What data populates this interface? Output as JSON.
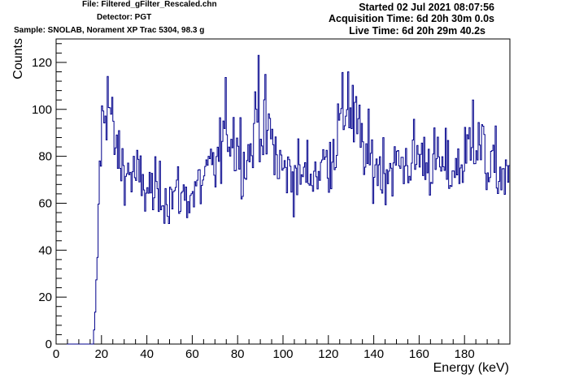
{
  "header": {
    "file": "File: Filtered_gFilter_Rescaled.chn",
    "detector": "Detector: PGT",
    "sample": "Sample: SNOLAB, Norament XP Trac 5304, 98.3 g",
    "started": "Started 02 Jul 2021 08:07:56",
    "acquisition_time": "Acquisition Time: 6d 20h 30m 0.0s",
    "live_time": "Live Time: 6d 20h 29m 40.2s"
  },
  "colors": {
    "series": "#00008b",
    "axis": "#000000"
  },
  "chart_data": {
    "type": "line",
    "style": "step-histogram",
    "title": "",
    "xlabel": "Energy (keV)",
    "ylabel": "Counts",
    "xlim": [
      0,
      200
    ],
    "ylim": [
      0,
      130
    ],
    "xticks": [
      0,
      20,
      40,
      60,
      80,
      100,
      120,
      140,
      160,
      180
    ],
    "yticks": [
      0,
      20,
      40,
      60,
      80,
      100,
      120
    ],
    "grid": false,
    "legend": "none",
    "bin_width_keV": 0.5,
    "y_anchor_points": [
      [
        0,
        0
      ],
      [
        16,
        0
      ],
      [
        17,
        12
      ],
      [
        18,
        38
      ],
      [
        19,
        75
      ],
      [
        20,
        92
      ],
      [
        21,
        98
      ],
      [
        22,
        108
      ],
      [
        23,
        103
      ],
      [
        24,
        95
      ],
      [
        25,
        88
      ],
      [
        26,
        83
      ],
      [
        27,
        80
      ],
      [
        28,
        78
      ],
      [
        30,
        74
      ],
      [
        32,
        73
      ],
      [
        34,
        72
      ],
      [
        36,
        70
      ],
      [
        38,
        67
      ],
      [
        40,
        66
      ],
      [
        42,
        65
      ],
      [
        44,
        64
      ],
      [
        46,
        64
      ],
      [
        48,
        64
      ],
      [
        50,
        63
      ],
      [
        52,
        64
      ],
      [
        54,
        64
      ],
      [
        56,
        63
      ],
      [
        58,
        63
      ],
      [
        60,
        64
      ],
      [
        62,
        66
      ],
      [
        64,
        69
      ],
      [
        66,
        71
      ],
      [
        68,
        73
      ],
      [
        70,
        76
      ],
      [
        72,
        80
      ],
      [
        74,
        90
      ],
      [
        76,
        93
      ],
      [
        78,
        88
      ],
      [
        80,
        84
      ],
      [
        82,
        80
      ],
      [
        84,
        79
      ],
      [
        86,
        84
      ],
      [
        88,
        96
      ],
      [
        89,
        102
      ],
      [
        90,
        95
      ],
      [
        92,
        90
      ],
      [
        94,
        89
      ],
      [
        96,
        82
      ],
      [
        98,
        76
      ],
      [
        100,
        74
      ],
      [
        104,
        73
      ],
      [
        108,
        72
      ],
      [
        112,
        73
      ],
      [
        116,
        75
      ],
      [
        120,
        79
      ],
      [
        124,
        90
      ],
      [
        126,
        96
      ],
      [
        128,
        103
      ],
      [
        130,
        100
      ],
      [
        132,
        92
      ],
      [
        134,
        86
      ],
      [
        136,
        80
      ],
      [
        140,
        76
      ],
      [
        145,
        75
      ],
      [
        150,
        76
      ],
      [
        155,
        78
      ],
      [
        160,
        80
      ],
      [
        165,
        78
      ],
      [
        170,
        75
      ],
      [
        175,
        74
      ],
      [
        180,
        78
      ],
      [
        183,
        88
      ],
      [
        186,
        85
      ],
      [
        190,
        76
      ],
      [
        195,
        73
      ],
      [
        199.5,
        70
      ]
    ],
    "noise_sigma_fraction": 0.1,
    "labeled_peaks": [
      [
        22.5,
        114
      ],
      [
        89,
        123
      ],
      [
        128.5,
        116
      ],
      [
        183.5,
        104
      ]
    ]
  }
}
